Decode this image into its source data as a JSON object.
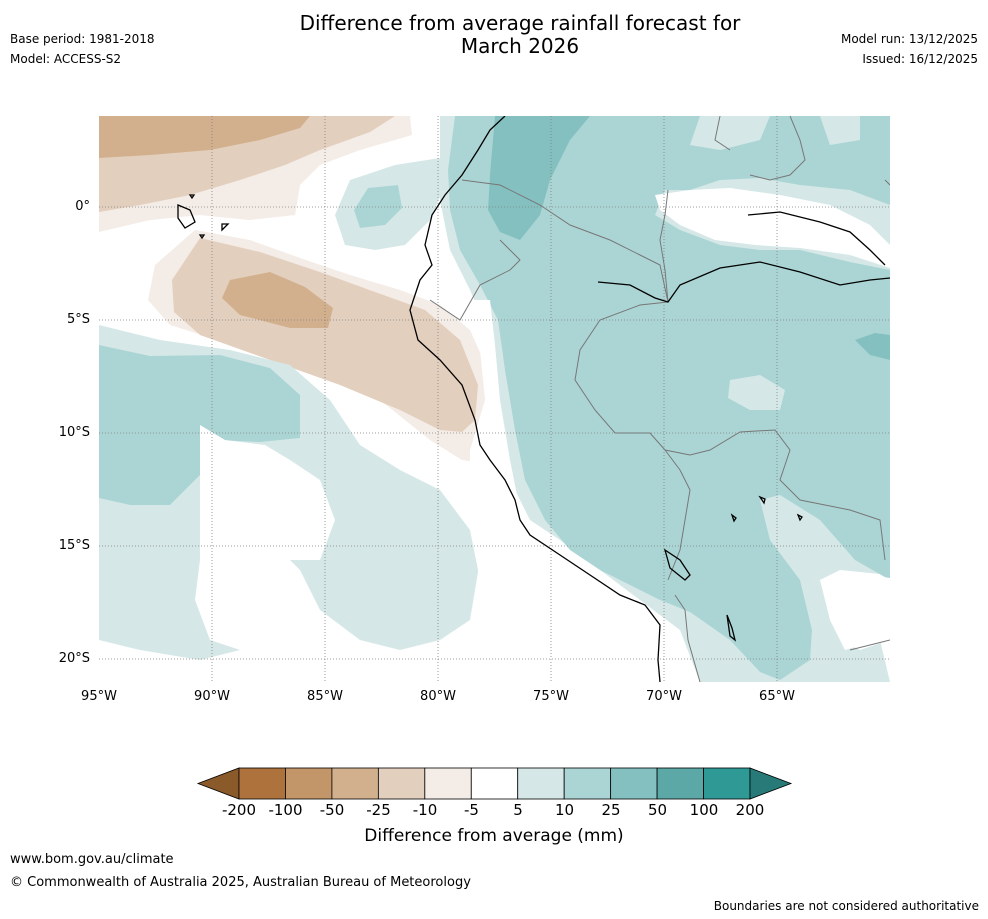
{
  "title_line1": "Difference from average rainfall forecast for",
  "title_line2": "March 2026",
  "base_period": "Base period: 1981-2018",
  "model": "Model: ACCESS-S2",
  "model_run": "Model run: 13/12/2025",
  "issued": "Issued: 16/12/2025",
  "lat_labels": [
    "0°",
    "5°S",
    "10°S",
    "15°S",
    "20°S"
  ],
  "lon_labels": [
    "95°W",
    "90°W",
    "85°W",
    "80°W",
    "75°W",
    "70°W",
    "65°W"
  ],
  "colorbar": {
    "ticks": [
      "-200",
      "-100",
      "-50",
      "-25",
      "-10",
      "-5",
      "5",
      "10",
      "25",
      "50",
      "100",
      "200"
    ],
    "label": "Difference from average (mm)",
    "colors": [
      "#8b5a2b",
      "#ae733c",
      "#c39669",
      "#d2b08e",
      "#e3cfbd",
      "#f4ece6",
      "#ffffff",
      "#d5e8e7",
      "#abd5d4",
      "#84c0c0",
      "#5ba8a7",
      "#2f9995",
      "#277a77"
    ]
  },
  "footer_url": "www.bom.gov.au/climate",
  "copyright": "© Commonwealth of Australia 2025, Australian Bureau of Meteorology",
  "disclaimer": "Boundaries are not considered authoritative"
}
